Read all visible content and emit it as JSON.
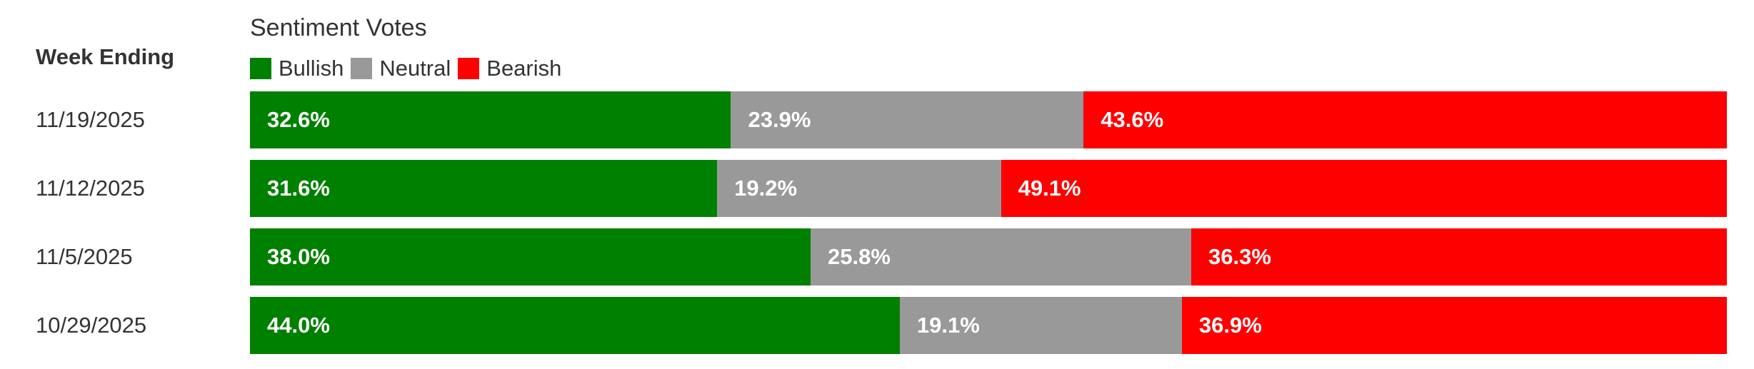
{
  "chart_data": {
    "type": "bar",
    "orientation": "horizontal",
    "stacked": true,
    "title": "Sentiment Votes",
    "row_header": "Week Ending",
    "legend_position": "top-left",
    "xlim": [
      0,
      100
    ],
    "grid": false,
    "categories": [
      "11/19/2025",
      "11/12/2025",
      "11/5/2025",
      "10/29/2025"
    ],
    "series": [
      {
        "name": "Bullish",
        "color": "#008000",
        "values": [
          32.6,
          31.6,
          38.0,
          44.0
        ],
        "labels": [
          "32.6%",
          "31.6%",
          "38.0%",
          "44.0%"
        ]
      },
      {
        "name": "Neutral",
        "color": "#999999",
        "values": [
          23.9,
          19.2,
          25.8,
          19.1
        ],
        "labels": [
          "23.9%",
          "19.2%",
          "25.8%",
          "19.1%"
        ]
      },
      {
        "name": "Bearish",
        "color": "#ff0000",
        "values": [
          43.6,
          49.1,
          36.3,
          36.9
        ],
        "labels": [
          "43.6%",
          "49.1%",
          "36.3%",
          "36.9%"
        ]
      }
    ]
  }
}
